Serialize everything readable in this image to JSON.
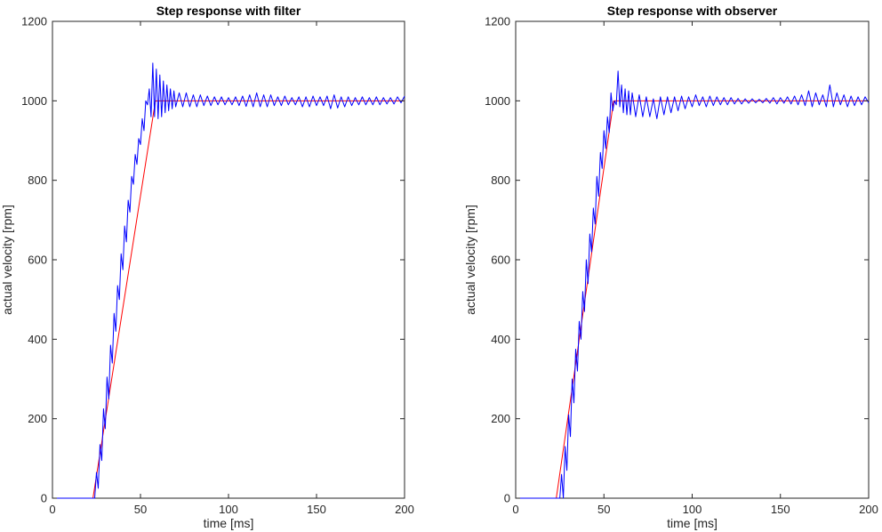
{
  "chart_data": [
    {
      "type": "line",
      "title": "Step response with filter",
      "xlabel": "time [ms]",
      "ylabel": "actual velocity [rpm]",
      "xlim": [
        0,
        200
      ],
      "ylim": [
        0,
        1200
      ],
      "xticks": [
        0,
        50,
        100,
        150,
        200
      ],
      "yticks": [
        0,
        200,
        400,
        600,
        800,
        1000,
        1200
      ],
      "grid": false,
      "series": [
        {
          "color": "#ff0000",
          "x": [
            0,
            23,
            58.5,
            200
          ],
          "y": [
            0,
            0,
            1000,
            1000
          ]
        },
        {
          "color": "#0000ff",
          "x": [
            0,
            24,
            25,
            26,
            27,
            28,
            29,
            30,
            31,
            32,
            33,
            34,
            35,
            36,
            37,
            38,
            39,
            40,
            41,
            42,
            43,
            44,
            45,
            46,
            47,
            48,
            49,
            50,
            51,
            52,
            53,
            54,
            55,
            56,
            57,
            58,
            59,
            60,
            61,
            62,
            63,
            64,
            65,
            66,
            67,
            68,
            69,
            70,
            72,
            74,
            76,
            78,
            80,
            82,
            84,
            86,
            88,
            90,
            92,
            94,
            96,
            98,
            100,
            102,
            104,
            106,
            108,
            110,
            112,
            114,
            116,
            118,
            120,
            122,
            124,
            126,
            128,
            130,
            132,
            134,
            136,
            138,
            140,
            142,
            144,
            146,
            148,
            150,
            152,
            154,
            156,
            158,
            160,
            162,
            164,
            166,
            168,
            170,
            172,
            174,
            176,
            178,
            180,
            182,
            184,
            186,
            188,
            190,
            192,
            194,
            196,
            198,
            200
          ],
          "y": [
            0,
            0,
            65,
            25,
            135,
            95,
            225,
            175,
            305,
            250,
            385,
            340,
            465,
            420,
            535,
            500,
            615,
            575,
            685,
            645,
            750,
            720,
            810,
            790,
            865,
            840,
            905,
            890,
            955,
            925,
            1000,
            990,
            1030,
            960,
            1095,
            960,
            1080,
            955,
            1065,
            960,
            1050,
            970,
            1040,
            975,
            1030,
            980,
            1025,
            985,
            1020,
            985,
            1020,
            985,
            1015,
            985,
            1015,
            988,
            1012,
            988,
            1010,
            990,
            1010,
            990,
            1008,
            990,
            1010,
            988,
            1012,
            986,
            1015,
            985,
            1020,
            985,
            1015,
            985,
            1015,
            988,
            1010,
            988,
            1012,
            990,
            1008,
            990,
            1010,
            985,
            1010,
            985,
            1012,
            988,
            1010,
            988,
            1012,
            980,
            1015,
            982,
            1010,
            985,
            1010,
            988,
            1008,
            990,
            1010,
            990,
            1008,
            990,
            1010,
            990,
            1008,
            992,
            1008,
            992,
            1010,
            995,
            1012
          ]
        }
      ]
    },
    {
      "type": "line",
      "title": "Step response with observer",
      "xlabel": "time [ms]",
      "ylabel": "actual velocity [rpm]",
      "xlim": [
        0,
        200
      ],
      "ylim": [
        0,
        1200
      ],
      "xticks": [
        0,
        50,
        100,
        150,
        200
      ],
      "yticks": [
        0,
        200,
        400,
        600,
        800,
        1000,
        1200
      ],
      "grid": false,
      "series": [
        {
          "color": "#ff0000",
          "x": [
            0,
            23,
            55.5,
            200
          ],
          "y": [
            0,
            0,
            1000,
            1000
          ]
        },
        {
          "color": "#0000ff",
          "x": [
            0,
            25,
            26,
            27,
            28,
            29,
            30,
            31,
            32,
            33,
            34,
            35,
            36,
            37,
            38,
            39,
            40,
            41,
            42,
            43,
            44,
            45,
            46,
            47,
            48,
            49,
            50,
            51,
            52,
            53,
            54,
            55,
            56,
            57,
            58,
            59,
            60,
            61,
            62,
            63,
            64,
            65,
            66,
            68,
            70,
            72,
            74,
            76,
            78,
            80,
            82,
            84,
            86,
            88,
            90,
            92,
            94,
            96,
            98,
            100,
            102,
            104,
            106,
            108,
            110,
            112,
            114,
            116,
            118,
            120,
            122,
            124,
            126,
            128,
            130,
            132,
            134,
            136,
            138,
            140,
            142,
            144,
            146,
            148,
            150,
            152,
            154,
            156,
            158,
            160,
            162,
            164,
            166,
            168,
            170,
            172,
            174,
            176,
            178,
            180,
            182,
            184,
            186,
            188,
            190,
            192,
            194,
            196,
            198,
            200
          ],
          "y": [
            0,
            0,
            60,
            0,
            130,
            70,
            210,
            155,
            300,
            240,
            375,
            320,
            445,
            400,
            520,
            470,
            600,
            540,
            665,
            620,
            730,
            690,
            810,
            760,
            870,
            830,
            925,
            880,
            960,
            920,
            1020,
            975,
            1000,
            990,
            1075,
            985,
            1040,
            970,
            1030,
            965,
            1025,
            965,
            1020,
            960,
            1015,
            960,
            1010,
            960,
            1005,
            955,
            1010,
            965,
            1010,
            970,
            1010,
            975,
            1012,
            980,
            1010,
            985,
            1015,
            988,
            1010,
            985,
            1012,
            988,
            1010,
            990,
            1008,
            990,
            1008,
            992,
            1006,
            992,
            1005,
            994,
            1005,
            995,
            1004,
            995,
            1006,
            994,
            1008,
            992,
            1008,
            994,
            1010,
            992,
            1012,
            990,
            1015,
            988,
            1025,
            985,
            1020,
            990,
            1015,
            985,
            1040,
            985,
            1020,
            990,
            1015,
            985,
            1012,
            988,
            1010,
            990,
            1010,
            995
          ]
        }
      ]
    }
  ]
}
